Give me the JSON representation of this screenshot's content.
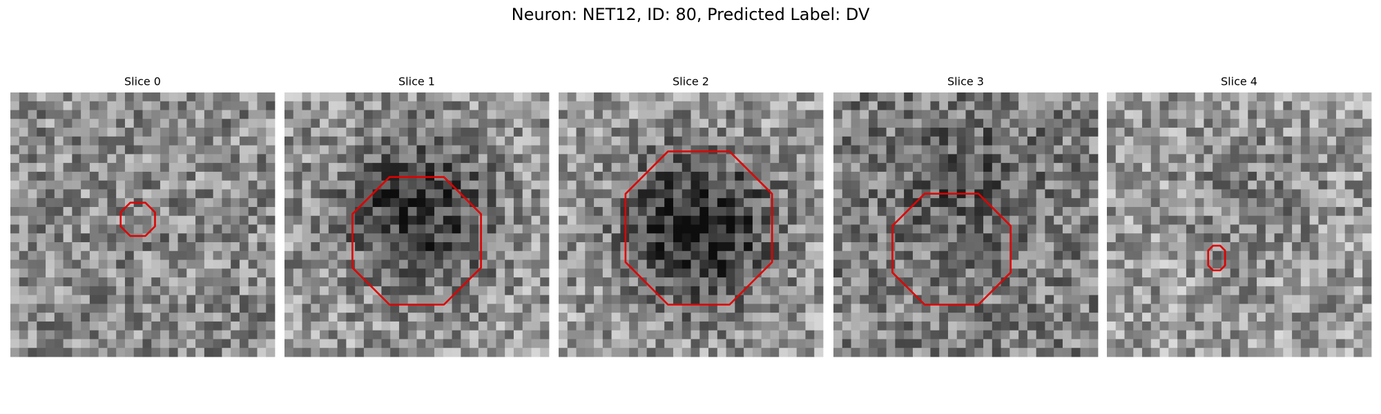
{
  "figure": {
    "title": "Neuron: NET12, ID: 80, Predicted Label: DV",
    "panels": [
      {
        "title": "Slice 0"
      },
      {
        "title": "Slice 1"
      },
      {
        "title": "Slice 2"
      },
      {
        "title": "Slice 3"
      },
      {
        "title": "Slice 4"
      }
    ]
  }
}
